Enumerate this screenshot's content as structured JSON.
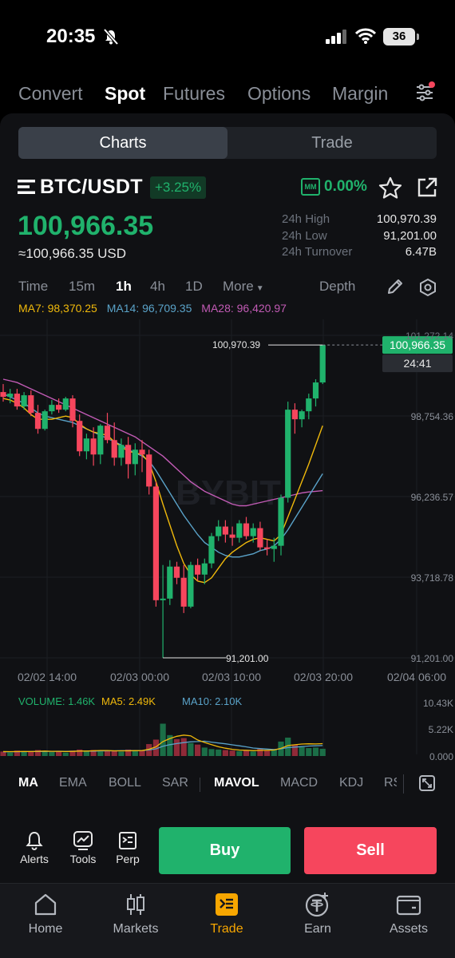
{
  "status_bar": {
    "time": "20:35",
    "battery": "36"
  },
  "top_tabs": [
    "Convert",
    "Spot",
    "Futures",
    "Options",
    "Margin"
  ],
  "active_top_tab": "Spot",
  "segment": {
    "charts": "Charts",
    "trade": "Trade"
  },
  "pair": {
    "name": "BTC/USDT",
    "change": "+3.25%",
    "mm_label": "MM",
    "mm_value": "0.00%"
  },
  "price": {
    "last": "100,966.35",
    "usd": "≈100,966.35 USD"
  },
  "stats": [
    {
      "label": "24h High",
      "value": "100,970.39"
    },
    {
      "label": "24h Low",
      "value": "91,201.00"
    },
    {
      "label": "24h Turnover",
      "value": "6.47B"
    }
  ],
  "intervals": [
    "Time",
    "15m",
    "1h",
    "4h",
    "1D",
    "More"
  ],
  "active_interval": "1h",
  "depth_label": "Depth",
  "ma_legend": [
    {
      "text": "MA7: 98,370.25",
      "color": "#f0b90b"
    },
    {
      "text": "MA14: 96,709.35",
      "color": "#5aa3c9"
    },
    {
      "text": "MA28: 96,420.97",
      "color": "#c25bb5"
    }
  ],
  "chart_data": {
    "type": "candlestick",
    "y_ticks": [
      "101,272.14",
      "98,754.36",
      "96,236.57",
      "93,718.78",
      "91,201.00"
    ],
    "x_ticks": [
      "02/02 14:00",
      "02/03 00:00",
      "02/03 10:00",
      "02/03 20:00",
      "02/04 06:00"
    ],
    "ylim": [
      91201,
      101272.14
    ],
    "high_marker": "100,970.39",
    "low_marker": "91,201.00",
    "last_price_tag": "100,966.35",
    "countdown": "24:41",
    "up_color": "#20b26c",
    "down_color": "#f6465d",
    "candles": [
      {
        "o": 99500,
        "h": 99750,
        "l": 99200,
        "c": 99350
      },
      {
        "o": 99350,
        "h": 99600,
        "l": 99150,
        "c": 99450
      },
      {
        "o": 99450,
        "h": 99600,
        "l": 98950,
        "c": 99050
      },
      {
        "o": 99050,
        "h": 99500,
        "l": 98950,
        "c": 99400
      },
      {
        "o": 99400,
        "h": 99550,
        "l": 98750,
        "c": 98850
      },
      {
        "o": 98850,
        "h": 99100,
        "l": 98200,
        "c": 98350
      },
      {
        "o": 98350,
        "h": 98950,
        "l": 98300,
        "c": 98900
      },
      {
        "o": 98900,
        "h": 99250,
        "l": 98800,
        "c": 99100
      },
      {
        "o": 99100,
        "h": 99300,
        "l": 98850,
        "c": 98950
      },
      {
        "o": 98950,
        "h": 99350,
        "l": 98900,
        "c": 99300
      },
      {
        "o": 99300,
        "h": 99400,
        "l": 98400,
        "c": 98600
      },
      {
        "o": 98600,
        "h": 98800,
        "l": 97500,
        "c": 97650
      },
      {
        "o": 97650,
        "h": 98200,
        "l": 97400,
        "c": 98050
      },
      {
        "o": 98050,
        "h": 98400,
        "l": 97200,
        "c": 97550
      },
      {
        "o": 97550,
        "h": 98500,
        "l": 97250,
        "c": 98450
      },
      {
        "o": 98450,
        "h": 98850,
        "l": 97900,
        "c": 98000
      },
      {
        "o": 98000,
        "h": 98550,
        "l": 97200,
        "c": 97450
      },
      {
        "o": 97450,
        "h": 98050,
        "l": 97200,
        "c": 97850
      },
      {
        "o": 97850,
        "h": 98100,
        "l": 96800,
        "c": 97250
      },
      {
        "o": 97250,
        "h": 97900,
        "l": 96900,
        "c": 97700
      },
      {
        "o": 97700,
        "h": 98000,
        "l": 97000,
        "c": 97550
      },
      {
        "o": 97550,
        "h": 97700,
        "l": 96300,
        "c": 96550
      },
      {
        "o": 96550,
        "h": 96700,
        "l": 92800,
        "c": 93000
      },
      {
        "o": 93000,
        "h": 94100,
        "l": 91201,
        "c": 93050
      },
      {
        "o": 93050,
        "h": 94250,
        "l": 92850,
        "c": 94050
      },
      {
        "o": 94050,
        "h": 94200,
        "l": 93500,
        "c": 93700
      },
      {
        "o": 93700,
        "h": 94100,
        "l": 92600,
        "c": 92800
      },
      {
        "o": 92800,
        "h": 94200,
        "l": 92750,
        "c": 94100
      },
      {
        "o": 94100,
        "h": 94300,
        "l": 93600,
        "c": 93800
      },
      {
        "o": 93800,
        "h": 94300,
        "l": 93500,
        "c": 94150
      },
      {
        "o": 94150,
        "h": 95100,
        "l": 94000,
        "c": 95000
      },
      {
        "o": 95000,
        "h": 95500,
        "l": 94850,
        "c": 95300
      },
      {
        "o": 95300,
        "h": 95500,
        "l": 94800,
        "c": 95050
      },
      {
        "o": 95050,
        "h": 95300,
        "l": 94700,
        "c": 94950
      },
      {
        "o": 94950,
        "h": 95500,
        "l": 94800,
        "c": 95400
      },
      {
        "o": 95400,
        "h": 95600,
        "l": 94900,
        "c": 95000
      },
      {
        "o": 95000,
        "h": 95400,
        "l": 94800,
        "c": 95250
      },
      {
        "o": 95250,
        "h": 95450,
        "l": 94550,
        "c": 94650
      },
      {
        "o": 94650,
        "h": 94900,
        "l": 94400,
        "c": 94600
      },
      {
        "o": 94600,
        "h": 94950,
        "l": 94200,
        "c": 94700
      },
      {
        "o": 94700,
        "h": 96300,
        "l": 94400,
        "c": 96200
      },
      {
        "o": 96200,
        "h": 99200,
        "l": 96050,
        "c": 98950
      },
      {
        "o": 98950,
        "h": 99150,
        "l": 98200,
        "c": 98650
      },
      {
        "o": 98650,
        "h": 98950,
        "l": 98400,
        "c": 98900
      },
      {
        "o": 98900,
        "h": 99450,
        "l": 98650,
        "c": 99300
      },
      {
        "o": 99300,
        "h": 99900,
        "l": 99050,
        "c": 99800
      },
      {
        "o": 99800,
        "h": 100970.39,
        "l": 99750,
        "c": 100966.35
      }
    ],
    "ma7": [
      99300,
      99250,
      99150,
      99000,
      98800,
      98650,
      98650,
      98650,
      98700,
      98750,
      98700,
      98500,
      98350,
      98250,
      98200,
      98150,
      97950,
      97800,
      97650,
      97600,
      97550,
      97300,
      96700,
      96000,
      95350,
      94700,
      94150,
      93800,
      93600,
      93550,
      93700,
      94000,
      94300,
      94500,
      94650,
      94800,
      94900,
      94950,
      94900,
      94850,
      95050,
      95600,
      96150,
      96700,
      97250,
      97850,
      98450
    ],
    "ma14": [
      99450,
      99350,
      99250,
      99150,
      99000,
      98850,
      98750,
      98700,
      98650,
      98600,
      98550,
      98450,
      98350,
      98250,
      98150,
      98050,
      97950,
      97850,
      97700,
      97600,
      97500,
      97350,
      97050,
      96700,
      96350,
      96000,
      95650,
      95350,
      95050,
      94800,
      94650,
      94500,
      94400,
      94350,
      94350,
      94400,
      94450,
      94550,
      94600,
      94700,
      94900,
      95200,
      95550,
      95900,
      96250,
      96600,
      96950
    ],
    "ma28": [
      99900,
      99850,
      99800,
      99700,
      99600,
      99500,
      99400,
      99300,
      99200,
      99100,
      99000,
      98900,
      98800,
      98700,
      98600,
      98500,
      98400,
      98300,
      98200,
      98100,
      97950,
      97800,
      97650,
      97500,
      97300,
      97100,
      96900,
      96700,
      96550,
      96400,
      96300,
      96200,
      96100,
      96000,
      95950,
      95950,
      96000,
      96050,
      96100,
      96150,
      96200,
      96250,
      96300,
      96350,
      96380,
      96400,
      96420
    ],
    "volume": {
      "legend": [
        {
          "text": "VOLUME: 1.46K",
          "color": "#20b26c"
        },
        {
          "text": "MA5: 2.49K",
          "color": "#f0b90b"
        },
        {
          "text": "MA10: 2.10K",
          "color": "#5aa3c9"
        }
      ],
      "y_ticks": [
        "10.43K",
        "5.22K",
        "0.000"
      ],
      "ylim": [
        0,
        10430
      ],
      "values": [
        900,
        700,
        1100,
        800,
        1000,
        1200,
        900,
        800,
        900,
        700,
        1100,
        1300,
        1000,
        1200,
        900,
        1100,
        1000,
        900,
        1300,
        1000,
        1200,
        2400,
        3300,
        6500,
        4200,
        3400,
        3600,
        2600,
        2300,
        1700,
        1400,
        1300,
        1200,
        1100,
        1000,
        1200,
        900,
        1500,
        1100,
        1300,
        2900,
        3700,
        2300,
        1800,
        1600,
        1700,
        1460
      ],
      "ma5": [
        900,
        880,
        900,
        920,
        900,
        950,
        1000,
        940,
        950,
        900,
        930,
        1000,
        1000,
        1060,
        1100,
        1100,
        1050,
        1050,
        1050,
        1070,
        1090,
        1360,
        1840,
        2900,
        3520,
        3960,
        4200,
        4060,
        3220,
        2720,
        2300,
        1860,
        1580,
        1340,
        1200,
        1160,
        1080,
        1140,
        1140,
        1200,
        1540,
        2100,
        2260,
        2400,
        2460,
        2420,
        2490
      ],
      "ma10": [
        850,
        860,
        870,
        880,
        900,
        910,
        930,
        950,
        960,
        950,
        960,
        980,
        990,
        1000,
        1020,
        1040,
        1050,
        1070,
        1080,
        1090,
        1110,
        1220,
        1440,
        1950,
        2280,
        2500,
        2700,
        2860,
        2900,
        2980,
        2800,
        2620,
        2450,
        2250,
        2050,
        1850,
        1600,
        1500,
        1400,
        1300,
        1450,
        1700,
        1800,
        1900,
        2000,
        2050,
        2100
      ]
    }
  },
  "indicators": [
    "MA",
    "EMA",
    "BOLL",
    "SAR",
    "MAVOL",
    "MACD",
    "KDJ",
    "RSI"
  ],
  "actions": {
    "alerts": "Alerts",
    "tools": "Tools",
    "perp": "Perp",
    "buy": "Buy",
    "sell": "Sell"
  },
  "nav": [
    {
      "label": "Home",
      "icon": "home-icon"
    },
    {
      "label": "Markets",
      "icon": "candles-icon"
    },
    {
      "label": "Trade",
      "icon": "trade-icon"
    },
    {
      "label": "Earn",
      "icon": "tether-icon"
    },
    {
      "label": "Assets",
      "icon": "wallet-icon"
    }
  ],
  "active_nav": "Trade",
  "colors": {
    "up": "#20b26c",
    "down": "#f6465d",
    "accent": "#f7a600"
  }
}
